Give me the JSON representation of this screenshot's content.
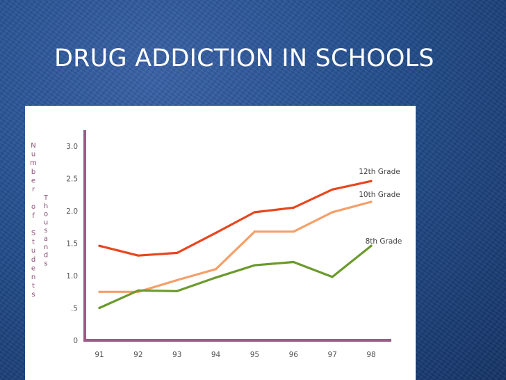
{
  "slide": {
    "title": "DRUG ADDICTION IN SCHOOLS"
  },
  "chart_data": {
    "type": "line",
    "title": "",
    "ylabel_outer": "Number of Students",
    "ylabel_inner": "Thousands",
    "xlabel": "",
    "categories": [
      "91",
      "92",
      "93",
      "94",
      "95",
      "96",
      "97",
      "98"
    ],
    "yticks": [
      {
        "value": 0,
        "label": "0"
      },
      {
        "value": 0.5,
        "label": ".5"
      },
      {
        "value": 1.0,
        "label": "1.0"
      },
      {
        "value": 1.5,
        "label": "1.5"
      },
      {
        "value": 2.0,
        "label": "2.0"
      },
      {
        "value": 2.5,
        "label": "2.5"
      },
      {
        "value": 3.0,
        "label": "3.0"
      }
    ],
    "ylim": [
      0,
      3.0
    ],
    "series": [
      {
        "name": "12th Grade",
        "color": "#e8461e",
        "values": [
          1.46,
          1.31,
          1.35,
          1.66,
          1.98,
          2.05,
          2.33,
          2.46
        ]
      },
      {
        "name": "10th Grade",
        "color": "#f4a06a",
        "values": [
          0.75,
          0.75,
          0.93,
          1.1,
          1.68,
          1.68,
          1.98,
          2.14
        ]
      },
      {
        "name": "8th Grade",
        "color": "#6b9a2c",
        "values": [
          0.5,
          0.77,
          0.76,
          0.97,
          1.16,
          1.21,
          0.98,
          1.46
        ]
      }
    ],
    "axis_color": "#9c5a87",
    "grid": false,
    "legend": "inline-right"
  }
}
